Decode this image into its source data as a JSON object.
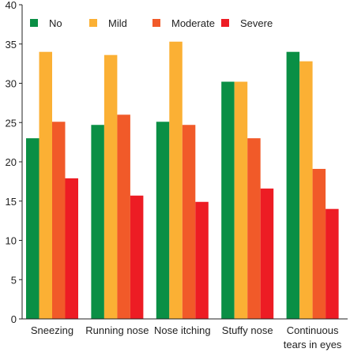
{
  "chart_data": {
    "type": "bar",
    "title": "",
    "xlabel": "",
    "ylabel": "",
    "ylim": [
      0,
      40
    ],
    "yticks": [
      0,
      5,
      10,
      15,
      20,
      25,
      30,
      35,
      40
    ],
    "grid": false,
    "legend_position": "top",
    "categories": [
      [
        "Sneezing"
      ],
      [
        "Running nose"
      ],
      [
        "Nose itching"
      ],
      [
        "Stuffy nose"
      ],
      [
        "Continuous",
        "tears in eyes"
      ]
    ],
    "series": [
      {
        "name": "No",
        "color": "#0a8f45",
        "values": [
          23.0,
          24.7,
          25.1,
          30.2,
          34.0
        ]
      },
      {
        "name": "Mild",
        "color": "#fbb034",
        "values": [
          34.0,
          33.6,
          35.3,
          30.2,
          32.8
        ]
      },
      {
        "name": "Moderate",
        "color": "#f15a29",
        "values": [
          25.1,
          26.0,
          24.7,
          23.0,
          19.1
        ]
      },
      {
        "name": "Severe",
        "color": "#ed1c24",
        "values": [
          17.9,
          15.7,
          14.9,
          16.6,
          14.0
        ]
      }
    ]
  }
}
